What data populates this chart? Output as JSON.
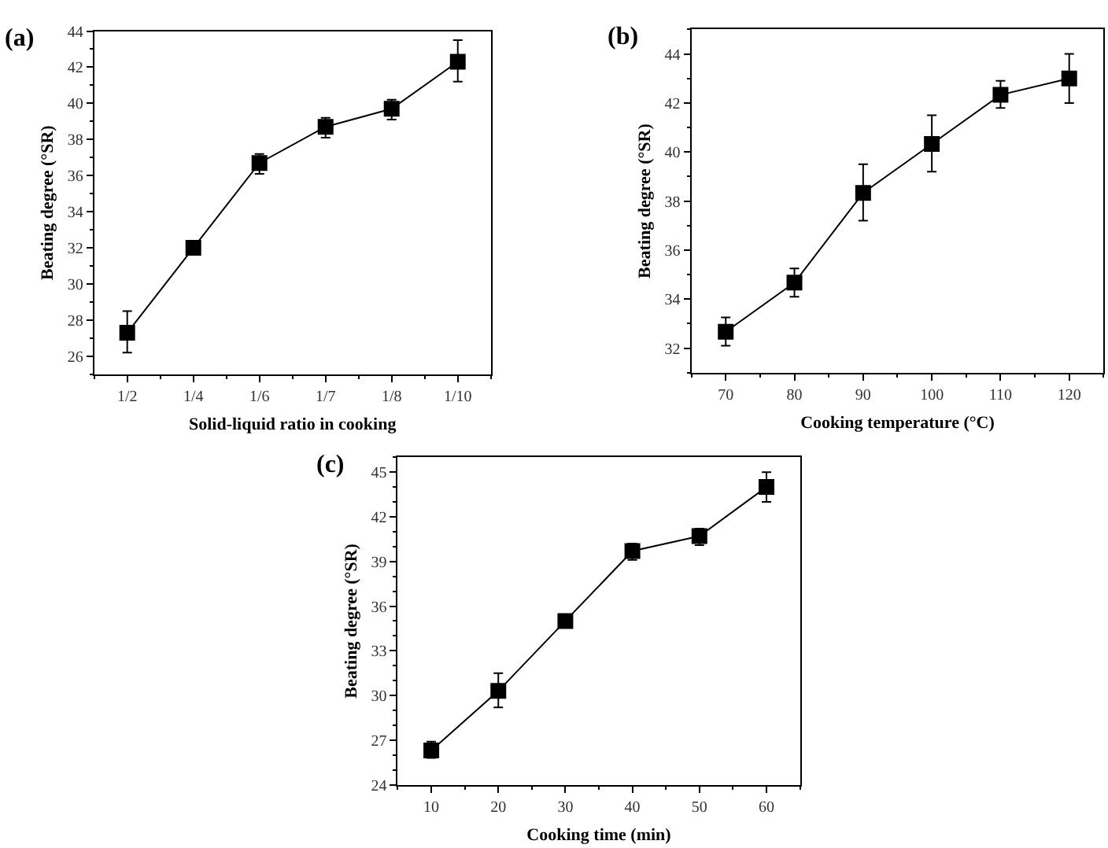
{
  "chart_data": [
    {
      "type": "line",
      "title": "(a)",
      "xlabel": "Solid-liquid ratio in cooking",
      "ylabel": "Beating degree (°SR)",
      "categories": [
        "1/2",
        "1/4",
        "1/6",
        "1/7",
        "1/8",
        "1/10"
      ],
      "series": [
        {
          "color": "#000000",
          "values": [
            27.3,
            32.0,
            36.7,
            38.7,
            39.7,
            42.3
          ],
          "errors": [
            [
              26.2,
              28.5
            ],
            null,
            [
              36.1,
              37.2
            ],
            [
              38.1,
              39.2
            ],
            [
              39.1,
              40.2
            ],
            [
              41.2,
              43.5
            ]
          ]
        }
      ],
      "ylim": [
        25,
        44
      ],
      "yticks": [
        26,
        28,
        30,
        32,
        34,
        36,
        38,
        40,
        42,
        44
      ],
      "marker": "square",
      "line_style": "solid"
    },
    {
      "type": "line",
      "title": "(b)",
      "xlabel": "Cooking temperature (°C)",
      "ylabel": "Beating degree (°SR)",
      "x": [
        70,
        80,
        90,
        100,
        110,
        120
      ],
      "series": [
        {
          "color": "#000000",
          "values": [
            32.67,
            34.67,
            38.33,
            40.33,
            42.33,
            43.0
          ],
          "errors": [
            [
              32.1,
              33.25
            ],
            [
              34.1,
              35.25
            ],
            [
              37.2,
              39.5
            ],
            [
              39.2,
              41.5
            ],
            [
              41.8,
              42.9
            ],
            [
              42.0,
              44.0
            ]
          ]
        }
      ],
      "xlim": [
        65,
        125
      ],
      "xticks": [
        70,
        80,
        90,
        100,
        110,
        120
      ],
      "ylim": [
        31,
        45
      ],
      "yticks": [
        32,
        34,
        36,
        38,
        40,
        42,
        44
      ],
      "marker": "square",
      "line_style": "solid"
    },
    {
      "type": "line",
      "title": "(c)",
      "xlabel": "Cooking time (min)",
      "ylabel": "Beating degree (°SR)",
      "x": [
        10,
        20,
        30,
        40,
        50,
        60
      ],
      "series": [
        {
          "color": "#000000",
          "values": [
            26.3,
            30.3,
            35.0,
            39.7,
            40.7,
            44.0
          ],
          "errors": [
            [
              25.8,
              26.9
            ],
            [
              29.2,
              31.5
            ],
            null,
            [
              39.1,
              40.2
            ],
            [
              40.1,
              41.2
            ],
            [
              43.0,
              45.0
            ]
          ]
        }
      ],
      "xlim": [
        5,
        65
      ],
      "xticks": [
        10,
        20,
        30,
        40,
        50,
        60
      ],
      "ylim": [
        24,
        46
      ],
      "yticks": [
        24,
        27,
        30,
        33,
        36,
        39,
        42,
        45
      ],
      "marker": "square",
      "line_style": "solid"
    }
  ]
}
